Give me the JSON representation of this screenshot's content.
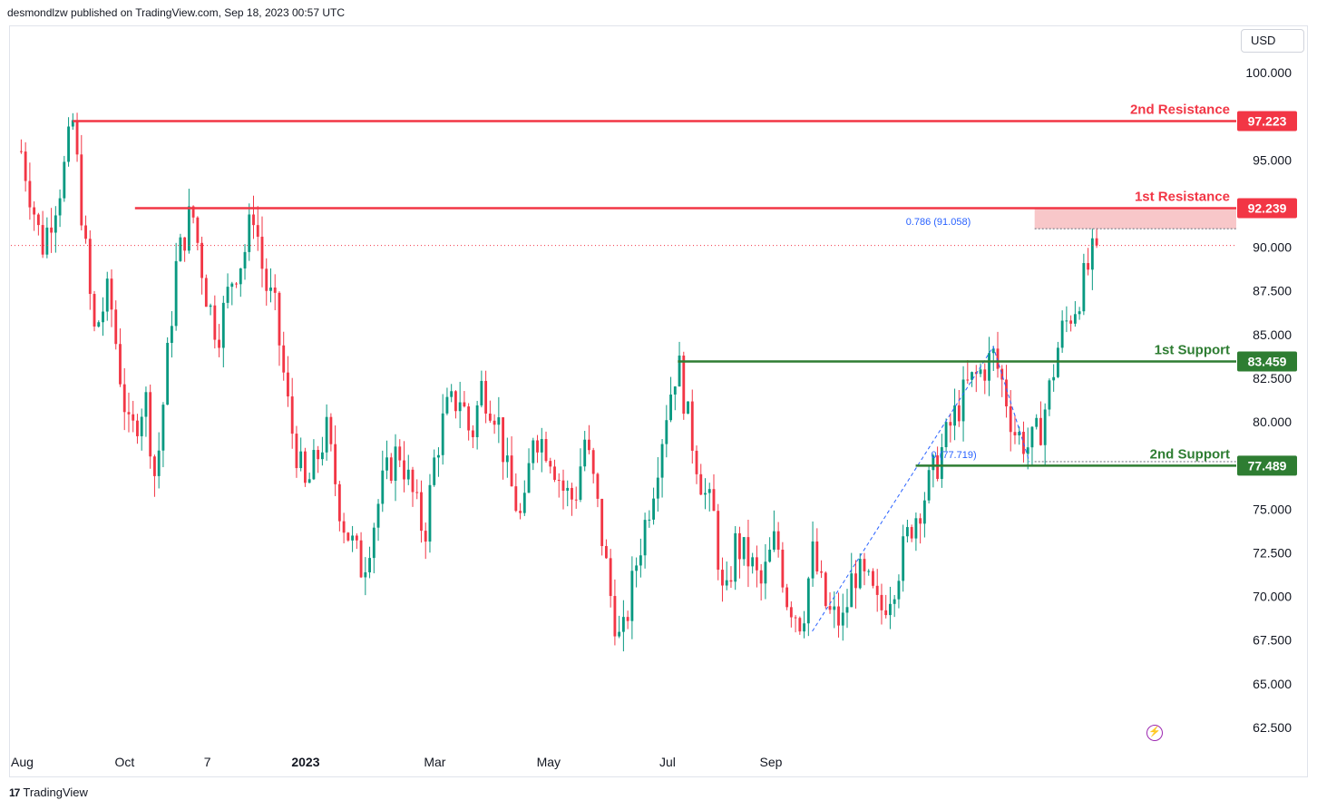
{
  "header": {
    "publisher": "desmondlzw published on TradingView.com, Sep 18, 2023 00:57 UTC"
  },
  "currency": "USD",
  "footer": {
    "brand": "TradingView"
  },
  "colors": {
    "up": "#089981",
    "down": "#f23645",
    "resistance": "#f23645",
    "support": "#2e7d32",
    "fib": "#2962ff",
    "zone": "#f8c7c9"
  },
  "chart_data": {
    "type": "candlestick",
    "y_range": [
      61.3,
      102.6
    ],
    "y_ticks": [
      "100.000",
      "95.000",
      "90.000",
      "87.500",
      "85.000",
      "82.500",
      "80.000",
      "75.000",
      "72.500",
      "70.000",
      "67.500",
      "65.000",
      "62.500"
    ],
    "x_labels": [
      "Aug",
      "Oct",
      "7",
      "2023",
      "Mar",
      "May",
      "Jul",
      "Sep"
    ],
    "current_price": 90.1,
    "levels": [
      {
        "label": "2nd Resistance",
        "value": 97.223,
        "value_text": "97.223",
        "kind": "resistance"
      },
      {
        "label": "1st Resistance",
        "value": 92.239,
        "value_text": "92.239",
        "kind": "resistance"
      },
      {
        "label": "1st Support",
        "value": 83.459,
        "value_text": "83.459",
        "kind": "support"
      },
      {
        "label": "2nd Support",
        "value": 77.489,
        "value_text": "77.489",
        "kind": "support"
      }
    ],
    "fib_annotations": [
      {
        "text": "0.786 (91.058)",
        "value": 91.058
      },
      {
        "text": "0 (77.719)",
        "value": 77.719
      }
    ],
    "price_path": [
      [
        2022.6,
        95.5
      ],
      [
        2022.64,
        90.0
      ],
      [
        2022.68,
        94.0
      ],
      [
        2022.7,
        97.2
      ],
      [
        2022.74,
        85.0
      ],
      [
        2022.77,
        87.5
      ],
      [
        2022.79,
        83.0
      ],
      [
        2022.81,
        79.0
      ],
      [
        2022.84,
        81.5
      ],
      [
        2022.86,
        76.5
      ],
      [
        2022.9,
        89.0
      ],
      [
        2022.93,
        92.2
      ],
      [
        2022.96,
        87.0
      ],
      [
        2022.98,
        85.0
      ],
      [
        2023.01,
        88.5
      ],
      [
        2023.03,
        89.5
      ],
      [
        2023.05,
        92.2
      ],
      [
        2023.07,
        88.0
      ],
      [
        2023.09,
        86.5
      ],
      [
        2023.12,
        80.0
      ],
      [
        2023.15,
        76.0
      ],
      [
        2023.19,
        79.5
      ],
      [
        2023.22,
        74.5
      ],
      [
        2023.26,
        71.5
      ],
      [
        2023.3,
        76.5
      ],
      [
        2023.33,
        78.5
      ],
      [
        2023.35,
        76.5
      ],
      [
        2023.38,
        73.5
      ],
      [
        2023.4,
        78.0
      ],
      [
        2023.42,
        80.5
      ],
      [
        2023.45,
        81.5
      ],
      [
        2023.47,
        79.0
      ],
      [
        2023.49,
        82.0
      ],
      [
        2023.52,
        80.5
      ],
      [
        2023.54,
        77.0
      ],
      [
        2023.57,
        74.0
      ],
      [
        2023.59,
        79.5
      ],
      [
        2023.62,
        78.5
      ],
      [
        2023.65,
        76.0
      ],
      [
        2023.67,
        75.5
      ],
      [
        2023.69,
        79.0
      ],
      [
        2023.71,
        76.0
      ],
      [
        2023.74,
        70.0
      ],
      [
        2023.76,
        67.0
      ],
      [
        2023.79,
        72.0
      ],
      [
        2023.82,
        76.0
      ],
      [
        2023.85,
        81.0
      ],
      [
        2023.87,
        83.5
      ],
      [
        2023.89,
        80.0
      ],
      [
        2023.92,
        76.0
      ],
      [
        2023.94,
        74.5
      ],
      [
        2023.96,
        69.0
      ],
      [
        2023.98,
        73.0
      ],
      [
        2024.01,
        72.0
      ],
      [
        2024.03,
        70.5
      ],
      [
        2024.06,
        73.5
      ],
      [
        2024.08,
        70.0
      ],
      [
        2024.11,
        68.5
      ],
      [
        2024.13,
        72.5
      ],
      [
        2024.16,
        69.0
      ],
      [
        2024.19,
        68.5
      ],
      [
        2024.21,
        71.5
      ],
      [
        2024.24,
        70.5
      ],
      [
        2024.26,
        69.0
      ],
      [
        2024.29,
        71.0
      ],
      [
        2024.32,
        74.0
      ],
      [
        2024.35,
        76.0
      ],
      [
        2024.37,
        77.5
      ],
      [
        2024.4,
        80.0
      ],
      [
        2024.43,
        82.0
      ],
      [
        2024.46,
        83.0
      ],
      [
        2024.48,
        83.8
      ],
      [
        2024.5,
        82.0
      ],
      [
        2024.52,
        79.5
      ],
      [
        2024.55,
        78.5
      ],
      [
        2024.57,
        79.5
      ],
      [
        2024.59,
        82.0
      ],
      [
        2024.61,
        85.0
      ],
      [
        2024.64,
        86.8
      ],
      [
        2024.66,
        88.5
      ],
      [
        2024.68,
        90.1
      ]
    ]
  }
}
